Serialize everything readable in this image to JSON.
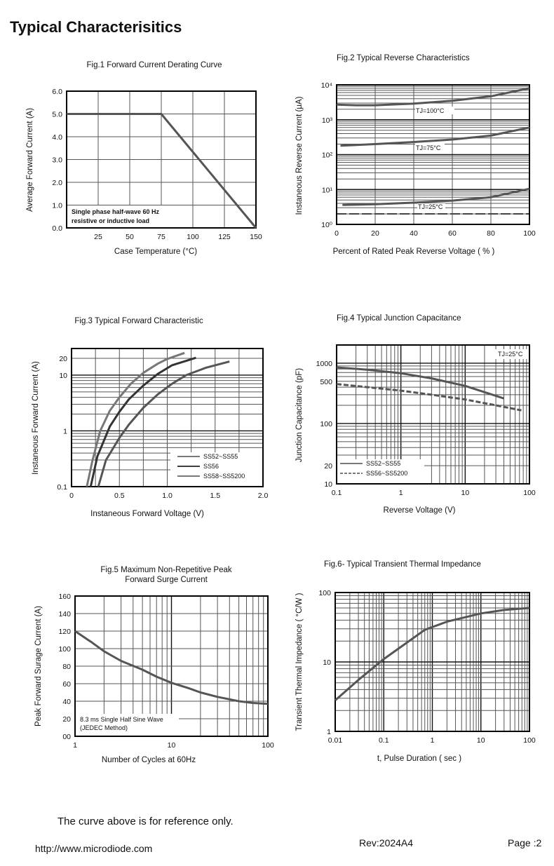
{
  "page": {
    "title": "Typical  Characterisitics",
    "disclaimer": "The curve above is for reference only.",
    "website": "http://www.microdiode.com",
    "revision": "Rev:2024A4",
    "page_number": "Page :2"
  },
  "colors": {
    "curve": "#555555",
    "curve_dark": "#333333",
    "grid": "#444444",
    "frame": "#000000"
  },
  "chart_data": [
    {
      "type": "line",
      "title": "Fig.1  Forward Current Derating Curve",
      "xlabel": "Case Temperature (°C)",
      "ylabel": "Average Forward Current  (A)",
      "xscale": "linear",
      "yscale": "linear",
      "xlim": [
        0,
        150
      ],
      "ylim": [
        0,
        6
      ],
      "xticks": [
        25,
        50,
        75,
        100,
        125,
        150
      ],
      "xtick_labels": [
        "25",
        "50",
        "75",
        "100",
        "125",
        "150"
      ],
      "yticks": [
        0,
        1,
        2,
        3,
        4,
        5,
        6
      ],
      "ytick_labels": [
        "0.0",
        "1.0",
        "2.0",
        "3.0",
        "4.0",
        "5.0",
        "6.0"
      ],
      "xgrid": [
        25,
        50,
        75,
        100,
        125
      ],
      "ygrid": [
        1,
        2,
        3,
        4,
        5
      ],
      "annotations": [
        "Single phase half-wave 60 Hz",
        "resistive or inductive load"
      ],
      "series": [
        {
          "name": "derating",
          "dashed": false,
          "points": [
            [
              0,
              5
            ],
            [
              75,
              5
            ],
            [
              150,
              0
            ]
          ]
        }
      ]
    },
    {
      "type": "line",
      "title": "Fig.2  Typical Reverse Characteristics",
      "xlabel": "Percent of Rated Peak Reverse Voltage ( % )",
      "ylabel": "Instaneous Reverse Current (μA)",
      "xscale": "linear",
      "yscale": "log",
      "xlim": [
        0,
        100
      ],
      "ylim": [
        1,
        10000
      ],
      "xticks": [
        0,
        20,
        40,
        60,
        80,
        100
      ],
      "xtick_labels": [
        "0",
        "20",
        "40",
        "60",
        "80",
        "100"
      ],
      "yticks": [
        1,
        10,
        100,
        1000,
        10000
      ],
      "ytick_labels": [
        "10⁰",
        "10¹",
        "10²",
        "10³",
        "10⁴"
      ],
      "xgrid": [
        20,
        40,
        60,
        80
      ],
      "annotations": [
        "TJ=100°C",
        "TJ=75°C",
        "TJ=25°C"
      ],
      "series": [
        {
          "name": "TJ=100°C",
          "dashed": false,
          "points": [
            [
              0,
              2700
            ],
            [
              10,
              2600
            ],
            [
              20,
              2600
            ],
            [
              40,
              2900
            ],
            [
              60,
              3500
            ],
            [
              80,
              4700
            ],
            [
              100,
              8000
            ]
          ]
        },
        {
          "name": "TJ=75°C",
          "dashed": false,
          "points": [
            [
              2,
              180
            ],
            [
              20,
              200
            ],
            [
              40,
              230
            ],
            [
              60,
              270
            ],
            [
              80,
              350
            ],
            [
              100,
              600
            ]
          ]
        },
        {
          "name": "TJ=25°C",
          "dashed": false,
          "points": [
            [
              3,
              3.6
            ],
            [
              20,
              3.8
            ],
            [
              40,
              4.2
            ],
            [
              60,
              4.8
            ],
            [
              80,
              6
            ],
            [
              100,
              10.5
            ]
          ]
        }
      ]
    },
    {
      "type": "line",
      "title": "Fig.3  Typical Forward Characteristic",
      "xlabel": "Instaneous Forward Voltage (V)",
      "ylabel": "Instaneous Forward Current  (A)",
      "xscale": "linear",
      "yscale": "log",
      "xlim": [
        0,
        2
      ],
      "ylim": [
        0.1,
        30
      ],
      "xticks": [
        0,
        0.5,
        1.0,
        1.5,
        2.0
      ],
      "xtick_labels": [
        "0",
        "0.5",
        "1.0",
        "1.5",
        "2.0"
      ],
      "yticks": [
        0.1,
        1,
        10,
        20
      ],
      "ytick_labels": [
        "0.1",
        "1",
        "10",
        "20"
      ],
      "xgrid": [
        0.25,
        0.5,
        0.75,
        1.0,
        1.25,
        1.5,
        1.75
      ],
      "legend": [
        "SS52~SS55",
        "SS56",
        "SS58~SS5200"
      ],
      "legend_position": "bottom-right",
      "series": [
        {
          "name": "SS52~SS55",
          "dashed": false,
          "points": [
            [
              0.16,
              0.1
            ],
            [
              0.22,
              0.3
            ],
            [
              0.3,
              1
            ],
            [
              0.4,
              2.3
            ],
            [
              0.5,
              4
            ],
            [
              0.62,
              7
            ],
            [
              0.75,
              11
            ],
            [
              0.9,
              16
            ],
            [
              1.0,
              19.5
            ],
            [
              1.18,
              25
            ]
          ]
        },
        {
          "name": "SS56",
          "dashed": false,
          "points": [
            [
              0.2,
              0.1
            ],
            [
              0.27,
              0.35
            ],
            [
              0.4,
              1.2
            ],
            [
              0.5,
              2.2
            ],
            [
              0.6,
              3.7
            ],
            [
              0.75,
              6.5
            ],
            [
              0.9,
              10.5
            ],
            [
              1.05,
              15
            ],
            [
              1.3,
              20.5
            ]
          ]
        },
        {
          "name": "SS58~SS5200",
          "dashed": false,
          "points": [
            [
              0.28,
              0.1
            ],
            [
              0.36,
              0.3
            ],
            [
              0.5,
              0.75
            ],
            [
              0.6,
              1.3
            ],
            [
              0.75,
              2.6
            ],
            [
              0.9,
              4.5
            ],
            [
              1.05,
              7
            ],
            [
              1.2,
              10
            ],
            [
              1.4,
              13.5
            ],
            [
              1.65,
              17.5
            ]
          ]
        }
      ]
    },
    {
      "type": "line",
      "title": "Fig.4  Typical Junction Capacitance",
      "xlabel": "Reverse  Voltage (V)",
      "ylabel": "Junction Capacitance (pF)",
      "xscale": "log",
      "yscale": "log",
      "xlim": [
        0.1,
        100
      ],
      "ylim": [
        10,
        2000
      ],
      "xticks": [
        0.1,
        1,
        10,
        100
      ],
      "xtick_labels": [
        "0.1",
        "1",
        "10",
        "100"
      ],
      "yticks": [
        10,
        20,
        100,
        500,
        1000
      ],
      "ytick_labels": [
        "10",
        "20",
        "100",
        "500",
        "1000"
      ],
      "annotations": [
        "TJ=25°C"
      ],
      "legend": [
        "SS52~SS55",
        "SS56~SS5200"
      ],
      "legend_position": "bottom-left",
      "series": [
        {
          "name": "SS52~SS55",
          "dashed": false,
          "points": [
            [
              0.1,
              850
            ],
            [
              0.3,
              780
            ],
            [
              1,
              680
            ],
            [
              3,
              560
            ],
            [
              10,
              420
            ],
            [
              40,
              260
            ]
          ]
        },
        {
          "name": "SS56~SS5200",
          "dashed": true,
          "points": [
            [
              0.1,
              450
            ],
            [
              0.3,
              400
            ],
            [
              1,
              350
            ],
            [
              3,
              300
            ],
            [
              10,
              250
            ],
            [
              30,
              200
            ],
            [
              75,
              165
            ]
          ]
        }
      ]
    },
    {
      "type": "line",
      "title": [
        "Fig.5  Maximum Non-Repetitive Peak",
        "Forward Surge Current"
      ],
      "xlabel": "Number of Cycles at 60Hz",
      "ylabel": "Peak Forward Surage Current (A)",
      "xscale": "log",
      "yscale": "linear",
      "xlim": [
        1,
        100
      ],
      "ylim": [
        0,
        160
      ],
      "xticks": [
        1,
        10,
        100
      ],
      "xtick_labels": [
        "1",
        "10",
        "100"
      ],
      "yticks": [
        0,
        20,
        40,
        60,
        80,
        100,
        120,
        140,
        160
      ],
      "ytick_labels": [
        "00",
        "20",
        "40",
        "60",
        "80",
        "100",
        "120",
        "140",
        "160"
      ],
      "ygrid": [
        20,
        40,
        60,
        80,
        100,
        120,
        140
      ],
      "annotations": [
        "8.3 ms Single Half Sine Wave",
        "(JEDEC Method)"
      ],
      "series": [
        {
          "name": "surge",
          "dashed": false,
          "points": [
            [
              1,
              120
            ],
            [
              1.5,
              107
            ],
            [
              2,
              97
            ],
            [
              3,
              86
            ],
            [
              5,
              76
            ],
            [
              7,
              68
            ],
            [
              10,
              61
            ],
            [
              15,
              55
            ],
            [
              20,
              50
            ],
            [
              30,
              45
            ],
            [
              50,
              40
            ],
            [
              70,
              38
            ],
            [
              100,
              37
            ]
          ]
        }
      ]
    },
    {
      "type": "line",
      "title": "Fig.6- Typical Transient Thermal Impedance",
      "xlabel": "t, Pulse Duration ( sec )",
      "ylabel": "Transient Thermal Impedance ( °C/W )",
      "xscale": "log",
      "yscale": "log",
      "xlim": [
        0.01,
        100
      ],
      "ylim": [
        1,
        100
      ],
      "xticks": [
        0.01,
        0.1,
        1,
        10,
        100
      ],
      "xtick_labels": [
        "0.01",
        "0.1",
        "1",
        "10",
        "100"
      ],
      "yticks": [
        1,
        10,
        100
      ],
      "ytick_labels": [
        "1",
        "10",
        "100"
      ],
      "series": [
        {
          "name": "thermal",
          "dashed": false,
          "points": [
            [
              0.01,
              2.8
            ],
            [
              0.03,
              5.5
            ],
            [
              0.1,
              11
            ],
            [
              0.3,
              19
            ],
            [
              0.7,
              29
            ],
            [
              2,
              38
            ],
            [
              10,
              50
            ],
            [
              30,
              56
            ],
            [
              100,
              60
            ]
          ]
        }
      ]
    }
  ]
}
